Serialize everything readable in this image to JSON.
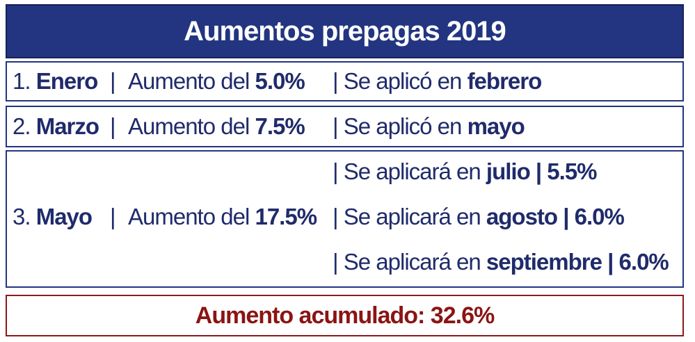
{
  "title": "Aumentos prepagas 2019",
  "rows": [
    {
      "num": "1.",
      "month": "Enero",
      "sep1": "|",
      "aumento_label": "Aumento del",
      "aumento_value": "5.0%",
      "aplicaciones": [
        {
          "sep": "|",
          "label": "Se aplicó en",
          "month": "febrero",
          "pct": ""
        }
      ]
    },
    {
      "num": "2.",
      "month": "Marzo",
      "sep1": "|",
      "aumento_label": "Aumento del",
      "aumento_value": "7.5%",
      "aplicaciones": [
        {
          "sep": "|",
          "label": "Se aplicó en",
          "month": "mayo",
          "pct": ""
        }
      ]
    },
    {
      "num": "3.",
      "month": "Mayo",
      "sep1": "|",
      "aumento_label": "Aumento del",
      "aumento_value": "17.5%",
      "aplicaciones": [
        {
          "sep": "|",
          "label": "Se aplicará en",
          "month": "julio",
          "pct": "| 5.5%"
        },
        {
          "sep": "|",
          "label": "Se aplicará en",
          "month": "agosto",
          "pct": "| 6.0%"
        },
        {
          "sep": "|",
          "label": "Se aplicará en",
          "month": "septiembre",
          "pct": "| 6.0%"
        }
      ]
    }
  ],
  "total": "Aumento acumulado: 32.6%",
  "colors": {
    "title_bg": "#233580",
    "text": "#1f2b6b",
    "total_text": "#8b1414",
    "total_border": "#8b1a1a"
  }
}
